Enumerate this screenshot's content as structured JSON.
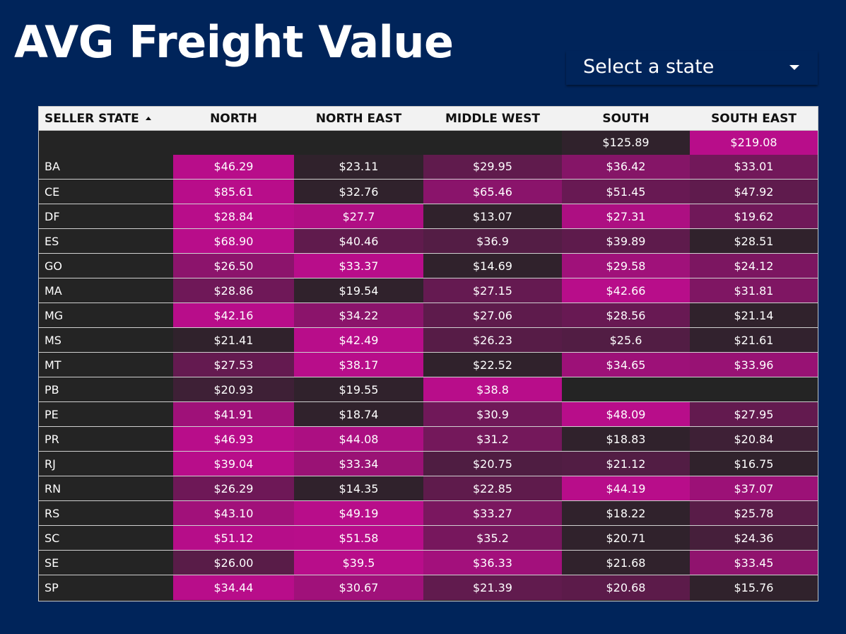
{
  "title": "AVG Freight Value",
  "filter": {
    "placeholder": "Select a state"
  },
  "colors": {
    "background": "#00245a",
    "cell_low": "#242424",
    "cell_high": "#b80d8a"
  },
  "table": {
    "columns": [
      "SELLER STATE",
      "NORTH",
      "NORTH EAST",
      "MIDDLE WEST",
      "SOUTH",
      "SOUTH EAST"
    ],
    "sort": {
      "column": "SELLER STATE",
      "direction": "ascending"
    },
    "rows": [
      {
        "state": "",
        "values": [
          "",
          "",
          "",
          "$125.89",
          "$219.08"
        ]
      },
      {
        "state": "BA",
        "values": [
          "$46.29",
          "$23.11",
          "$29.95",
          "$36.42",
          "$33.01"
        ]
      },
      {
        "state": "CE",
        "values": [
          "$85.61",
          "$32.76",
          "$65.46",
          "$51.45",
          "$47.92"
        ]
      },
      {
        "state": "DF",
        "values": [
          "$28.84",
          "$27.7",
          "$13.07",
          "$27.31",
          "$19.62"
        ]
      },
      {
        "state": "ES",
        "values": [
          "$68.90",
          "$40.46",
          "$36.9",
          "$39.89",
          "$28.51"
        ]
      },
      {
        "state": "GO",
        "values": [
          "$26.50",
          "$33.37",
          "$14.69",
          "$29.58",
          "$24.12"
        ]
      },
      {
        "state": "MA",
        "values": [
          "$28.86",
          "$19.54",
          "$27.15",
          "$42.66",
          "$31.81"
        ]
      },
      {
        "state": "MG",
        "values": [
          "$42.16",
          "$34.22",
          "$27.06",
          "$28.56",
          "$21.14"
        ]
      },
      {
        "state": "MS",
        "values": [
          "$21.41",
          "$42.49",
          "$26.23",
          "$25.6",
          "$21.61"
        ]
      },
      {
        "state": "MT",
        "values": [
          "$27.53",
          "$38.17",
          "$22.52",
          "$34.65",
          "$33.96"
        ]
      },
      {
        "state": "PB",
        "values": [
          "$20.93",
          "$19.55",
          "$38.8",
          "",
          ""
        ]
      },
      {
        "state": "PE",
        "values": [
          "$41.91",
          "$18.74",
          "$30.9",
          "$48.09",
          "$27.95"
        ]
      },
      {
        "state": "PR",
        "values": [
          "$46.93",
          "$44.08",
          "$31.2",
          "$18.83",
          "$20.84"
        ]
      },
      {
        "state": "RJ",
        "values": [
          "$39.04",
          "$33.34",
          "$20.75",
          "$21.12",
          "$16.75"
        ]
      },
      {
        "state": "RN",
        "values": [
          "$26.29",
          "$14.35",
          "$22.85",
          "$44.19",
          "$37.07"
        ]
      },
      {
        "state": "RS",
        "values": [
          "$43.10",
          "$49.19",
          "$33.27",
          "$18.22",
          "$25.78"
        ]
      },
      {
        "state": "SC",
        "values": [
          "$51.12",
          "$51.58",
          "$35.2",
          "$20.71",
          "$24.36"
        ]
      },
      {
        "state": "SE",
        "values": [
          "$26.00",
          "$39.5",
          "$36.33",
          "$21.68",
          "$33.45"
        ]
      },
      {
        "state": "SP",
        "values": [
          "$34.44",
          "$30.67",
          "$21.39",
          "$20.68",
          "$15.76"
        ]
      }
    ]
  }
}
